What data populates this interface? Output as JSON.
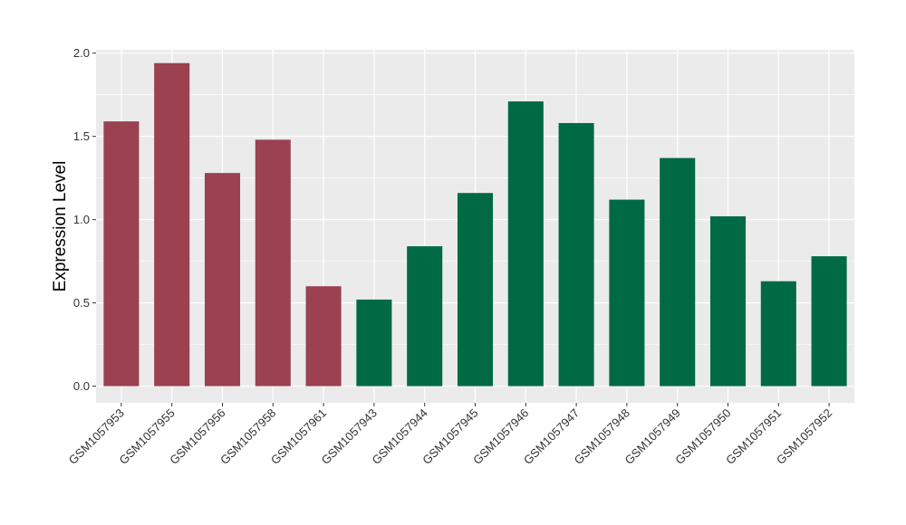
{
  "chart_data": {
    "type": "bar",
    "title": "",
    "xlabel": "",
    "ylabel": "Expression Level",
    "ylim": [
      -0.1,
      2.02
    ],
    "yticks": [
      "0.0",
      "0.5",
      "1.0",
      "1.5",
      "2.0"
    ],
    "grid": true,
    "colors": {
      "group_a": "#9b4150",
      "group_b": "#006a45",
      "panel": "#ebebeb",
      "gridline": "#ffffff"
    },
    "categories": [
      "GSM1057953",
      "GSM1057955",
      "GSM1057956",
      "GSM1057958",
      "GSM1057961",
      "GSM1057943",
      "GSM1057944",
      "GSM1057945",
      "GSM1057946",
      "GSM1057947",
      "GSM1057948",
      "GSM1057949",
      "GSM1057950",
      "GSM1057951",
      "GSM1057952"
    ],
    "values": [
      1.59,
      1.94,
      1.28,
      1.48,
      0.6,
      0.52,
      0.84,
      1.16,
      1.71,
      1.58,
      1.12,
      1.37,
      1.02,
      0.63,
      0.78
    ],
    "groups": [
      "a",
      "a",
      "a",
      "a",
      "a",
      "b",
      "b",
      "b",
      "b",
      "b",
      "b",
      "b",
      "b",
      "b",
      "b"
    ]
  }
}
